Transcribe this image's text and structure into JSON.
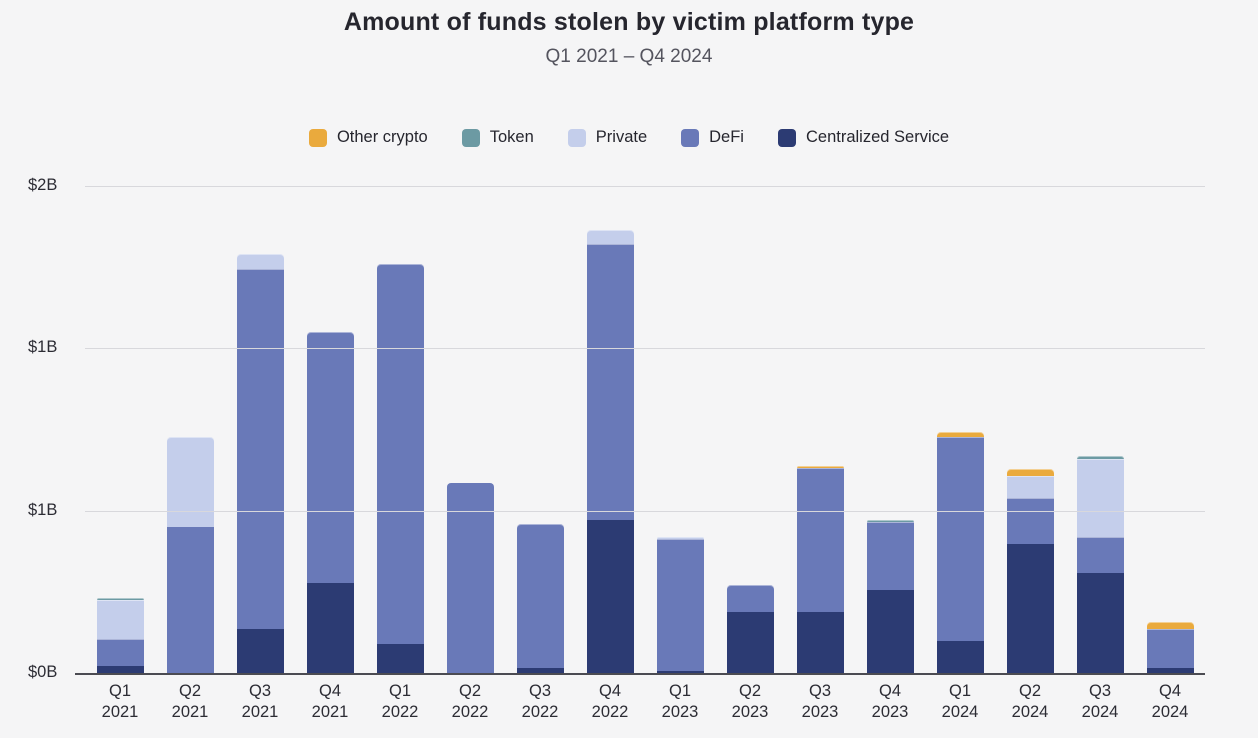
{
  "page": {
    "background": "#f5f5f6"
  },
  "chart_data": {
    "type": "bar",
    "stacked": true,
    "title": "Amount of funds stolen by victim platform type",
    "subtitle": "Q1 2021 – Q4 2024",
    "value_unit": "billions of USD",
    "ylim": [
      0,
      2
    ],
    "grid": true,
    "legend_position": "top",
    "y_ticks": [
      {
        "label": "$2B",
        "value": 2
      },
      {
        "label": "$1B",
        "value": 1.3333
      },
      {
        "label": "$1B",
        "value": 0.6667
      },
      {
        "label": "$0B",
        "value": 0
      }
    ],
    "categories": [
      {
        "quarter": "Q1",
        "year": "2021"
      },
      {
        "quarter": "Q2",
        "year": "2021"
      },
      {
        "quarter": "Q3",
        "year": "2021"
      },
      {
        "quarter": "Q4",
        "year": "2021"
      },
      {
        "quarter": "Q1",
        "year": "2022"
      },
      {
        "quarter": "Q2",
        "year": "2022"
      },
      {
        "quarter": "Q3",
        "year": "2022"
      },
      {
        "quarter": "Q4",
        "year": "2022"
      },
      {
        "quarter": "Q1",
        "year": "2023"
      },
      {
        "quarter": "Q2",
        "year": "2023"
      },
      {
        "quarter": "Q3",
        "year": "2023"
      },
      {
        "quarter": "Q4",
        "year": "2023"
      },
      {
        "quarter": "Q1",
        "year": "2024"
      },
      {
        "quarter": "Q2",
        "year": "2024"
      },
      {
        "quarter": "Q3",
        "year": "2024"
      },
      {
        "quarter": "Q4",
        "year": "2024"
      }
    ],
    "series": [
      {
        "name": "Centralized Service",
        "color": "#2C3B73",
        "values": [
          0.03,
          0.0,
          0.18,
          0.37,
          0.12,
          0.0,
          0.02,
          0.63,
          0.01,
          0.25,
          0.25,
          0.34,
          0.13,
          0.53,
          0.41,
          0.02
        ]
      },
      {
        "name": "DeFi",
        "color": "#6979B8",
        "values": [
          0.11,
          0.6,
          1.48,
          1.03,
          1.56,
          0.78,
          0.59,
          1.13,
          0.54,
          0.11,
          0.59,
          0.28,
          0.84,
          0.19,
          0.15,
          0.16
        ]
      },
      {
        "name": "Private",
        "color": "#C4CEEB",
        "values": [
          0.16,
          0.37,
          0.06,
          0.0,
          0.0,
          0.0,
          0.0,
          0.06,
          0.01,
          0.0,
          0.0,
          0.0,
          0.0,
          0.09,
          0.32,
          0.0
        ]
      },
      {
        "name": "Token",
        "color": "#6C9AA3",
        "values": [
          0.01,
          0.0,
          0.0,
          0.0,
          0.0,
          0.0,
          0.0,
          0.0,
          0.0,
          0.0,
          0.0,
          0.01,
          0.0,
          0.0,
          0.01,
          0.0
        ]
      },
      {
        "name": "Other crypto",
        "color": "#EAAA3D",
        "values": [
          0.0,
          0.0,
          0.0,
          0.0,
          0.0,
          0.0,
          0.0,
          0.0,
          0.0,
          0.0,
          0.01,
          0.0,
          0.02,
          0.03,
          0.0,
          0.03
        ]
      }
    ],
    "legend": [
      {
        "label": "Other crypto",
        "color": "#EAAA3D"
      },
      {
        "label": "Token",
        "color": "#6C9AA3"
      },
      {
        "label": "Private",
        "color": "#C4CEEB"
      },
      {
        "label": "DeFi",
        "color": "#6979B8"
      },
      {
        "label": "Centralized Service",
        "color": "#2C3B73"
      }
    ]
  }
}
